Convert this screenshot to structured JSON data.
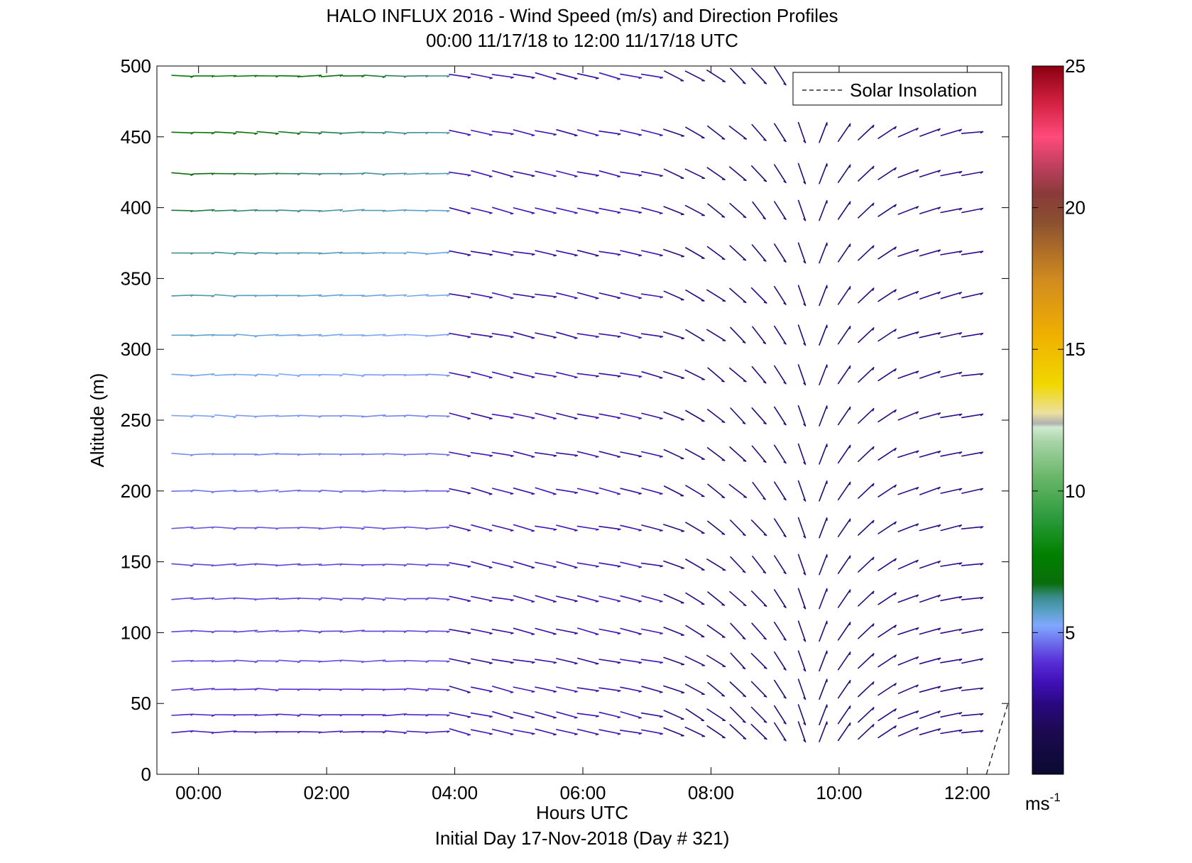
{
  "chart_data": {
    "type": "wind-barb-profile",
    "title": "HALO INFLUX 2016 - Wind Speed (m/s) and Direction Profiles",
    "subtitle": "00:00 11/17/18 to 12:00 11/17/18  UTC",
    "xlabel": "Hours UTC",
    "xlabel2": "Initial Day 17-Nov-2018 (Day # 321)",
    "ylabel": "Altitude (m)",
    "xlim": [
      -0.65,
      12.65
    ],
    "ylim": [
      0,
      500
    ],
    "x_ticks": [
      0,
      2,
      4,
      6,
      8,
      10,
      12
    ],
    "x_tick_labels": [
      "00:00",
      "02:00",
      "04:00",
      "06:00",
      "08:00",
      "10:00",
      "12:00"
    ],
    "y_ticks": [
      0,
      50,
      100,
      150,
      200,
      250,
      300,
      350,
      400,
      450,
      500
    ],
    "y_tick_labels": [
      "0",
      "50",
      "100",
      "150",
      "200",
      "250",
      "300",
      "350",
      "400",
      "450",
      "500"
    ],
    "legend": {
      "label": "Solar Insolation",
      "placement": "top-right"
    },
    "colorbar": {
      "min": 0,
      "max": 25,
      "ticks": [
        5,
        10,
        15,
        20,
        25
      ],
      "tick_labels": [
        "5",
        "10",
        "15",
        "20",
        "25"
      ],
      "unit": "ms",
      "unit_exp": "-1",
      "stops": [
        [
          0.0,
          "#0a0a30"
        ],
        [
          0.06,
          "#1c0a50"
        ],
        [
          0.1,
          "#2a0880"
        ],
        [
          0.13,
          "#4010b8"
        ],
        [
          0.16,
          "#5a30d8"
        ],
        [
          0.19,
          "#7078ee"
        ],
        [
          0.21,
          "#80a8ff"
        ],
        [
          0.23,
          "#5aa0c8"
        ],
        [
          0.25,
          "#3a8c8c"
        ],
        [
          0.27,
          "#0a6e0a"
        ],
        [
          0.31,
          "#008000"
        ],
        [
          0.36,
          "#2a9a3a"
        ],
        [
          0.42,
          "#6ab66a"
        ],
        [
          0.47,
          "#a8d4a8"
        ],
        [
          0.49,
          "#d0ead0"
        ],
        [
          0.495,
          "#b0b0b0"
        ],
        [
          0.51,
          "#ece0a0"
        ],
        [
          0.55,
          "#f0d800"
        ],
        [
          0.62,
          "#f0b000"
        ],
        [
          0.7,
          "#d08a20"
        ],
        [
          0.78,
          "#8a5030"
        ],
        [
          0.82,
          "#8a3a3a"
        ],
        [
          0.86,
          "#c04060"
        ],
        [
          0.9,
          "#ff4a7a"
        ],
        [
          0.95,
          "#d02040"
        ],
        [
          1.0,
          "#8a0010"
        ]
      ]
    },
    "altitudes": [
      30,
      42,
      60,
      80,
      101,
      124,
      148,
      174,
      200,
      226,
      253,
      282,
      310,
      338,
      368,
      398,
      424,
      453,
      493
    ],
    "times": [
      -0.25,
      0.08,
      0.42,
      0.75,
      1.08,
      1.42,
      1.75,
      2.08,
      2.42,
      2.75,
      3.08,
      3.42,
      3.75,
      4.08,
      4.42,
      4.75,
      5.08,
      5.42,
      5.75,
      6.08,
      6.42,
      6.75,
      7.08,
      7.42,
      7.75,
      8.08,
      8.42,
      8.75,
      9.08,
      9.42,
      9.75,
      10.08,
      10.42,
      10.75,
      11.08,
      11.42,
      11.75,
      12.08
    ],
    "solar_insolation_line": [
      [
        12.3,
        0
      ],
      [
        12.65,
        52
      ]
    ]
  }
}
